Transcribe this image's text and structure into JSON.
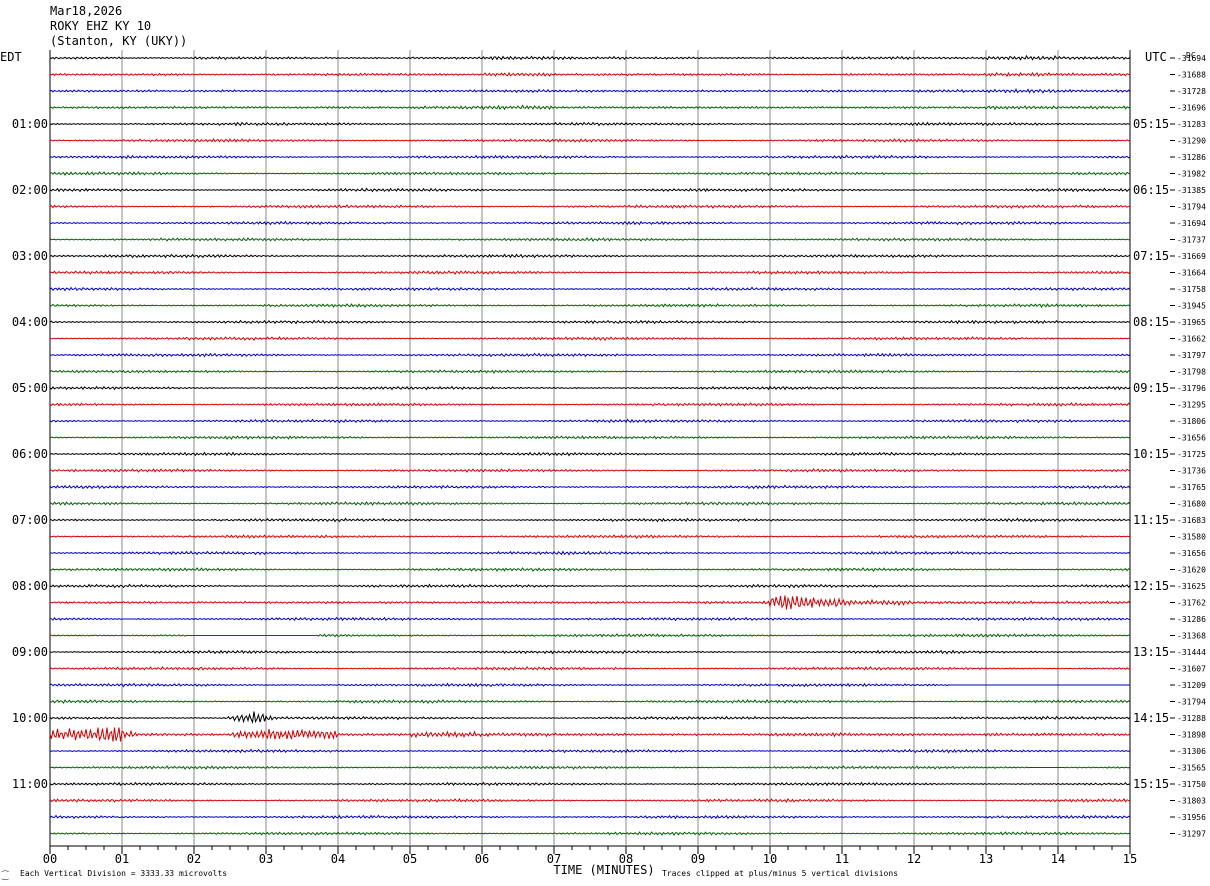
{
  "header": {
    "date": "Mar18,2026",
    "station": "ROKY EHZ KY 10",
    "location": "(Stanton, KY (UKY))"
  },
  "footer": {
    "scale_note": "Each Vertical Division = 3333.33 microvolts",
    "clip_note": "Traces clipped at plus/minus 5 vertical divisions",
    "corner_mark": "⁐"
  },
  "colors": {
    "trace_cycle": [
      "#000000",
      "#d00000",
      "#0000c0",
      "#006000"
    ],
    "grid": "#888888"
  },
  "chart_data": {
    "type": "line",
    "title": "",
    "xlabel": "TIME (MINUTES)",
    "ylabel": "",
    "x_ticks": [
      "00",
      "01",
      "02",
      "03",
      "04",
      "05",
      "06",
      "07",
      "08",
      "09",
      "10",
      "11",
      "12",
      "13",
      "14",
      "15"
    ],
    "xlim": [
      0,
      15
    ],
    "left_axis_label": "EDT",
    "right_axis_label": "UTC",
    "right_top_label": "DC",
    "left_hour_labels": [
      {
        "row": 4,
        "text": "01:00"
      },
      {
        "row": 8,
        "text": "02:00"
      },
      {
        "row": 12,
        "text": "03:00"
      },
      {
        "row": 16,
        "text": "04:00"
      },
      {
        "row": 20,
        "text": "05:00"
      },
      {
        "row": 24,
        "text": "06:00"
      },
      {
        "row": 28,
        "text": "07:00"
      },
      {
        "row": 32,
        "text": "08:00"
      },
      {
        "row": 36,
        "text": "09:00"
      },
      {
        "row": 40,
        "text": "10:00"
      },
      {
        "row": 44,
        "text": "11:00"
      }
    ],
    "right_hour_labels": [
      {
        "row": 4,
        "text": "05:15"
      },
      {
        "row": 8,
        "text": "06:15"
      },
      {
        "row": 12,
        "text": "07:15"
      },
      {
        "row": 16,
        "text": "08:15"
      },
      {
        "row": 20,
        "text": "09:15"
      },
      {
        "row": 24,
        "text": "10:15"
      },
      {
        "row": 28,
        "text": "11:15"
      },
      {
        "row": 32,
        "text": "12:15"
      },
      {
        "row": 36,
        "text": "13:15"
      },
      {
        "row": 40,
        "text": "14:15"
      },
      {
        "row": 44,
        "text": "15:15"
      }
    ],
    "dc_offsets": [
      "-31694",
      "-31688",
      "-31728",
      "-31696",
      "-31283",
      "-31290",
      "-31286",
      "-31982",
      "-31385",
      "-31794",
      "-31694",
      "-31737",
      "-31669",
      "-31664",
      "-31758",
      "-31945",
      "-31965",
      "-31662",
      "-31797",
      "-31798",
      "-31796",
      "-31295",
      "-31806",
      "-31656",
      "-31725",
      "-31736",
      "-31765",
      "-31680",
      "-31683",
      "-31580",
      "-31656",
      "-31620",
      "-31625",
      "-31762",
      "-31286",
      "-31368",
      "-31444",
      "-31607",
      "-31209",
      "-31794",
      "-31288",
      "-31898",
      "-31306",
      "-31565",
      "-31750",
      "-31803",
      "-31956",
      "-31297"
    ],
    "series": [
      {
        "row": 0,
        "values": [
          0.3,
          0.2,
          0.4,
          0.3,
          0.2,
          0.3,
          0.5,
          0.4,
          0.3,
          0.2,
          0.3,
          0.4,
          0.3,
          0.6,
          0.4,
          0.3
        ]
      },
      {
        "row": 1,
        "values": [
          0.3,
          0.3,
          0.2,
          0.3,
          0.4,
          0.3,
          0.5,
          0.3,
          0.3,
          0.3,
          0.2,
          0.3,
          0.3,
          0.5,
          0.4,
          0.3
        ]
      },
      {
        "row": 2,
        "values": [
          0.3,
          0.3,
          0.3,
          0.2,
          0.3,
          0.3,
          0.4,
          0.3,
          0.3,
          0.3,
          0.3,
          0.3,
          0.4,
          0.5,
          0.4,
          0.3
        ]
      },
      {
        "row": 3,
        "values": [
          0.3,
          0.3,
          0.3,
          0.3,
          0.3,
          0.4,
          0.6,
          0.3,
          0.3,
          0.3,
          0.3,
          0.3,
          0.3,
          0.5,
          0.4,
          0.3
        ]
      },
      {
        "row": 41,
        "values": [
          1.8,
          0.4,
          0.3,
          1.5,
          0.4,
          0.8,
          0.5,
          0.4,
          0.3,
          0.3,
          0.5,
          0.4,
          0.3,
          0.4,
          0.4,
          0.3
        ]
      },
      {
        "row": 33,
        "values": [
          0.3,
          0.3,
          0.3,
          0.3,
          0.3,
          0.3,
          0.3,
          0.3,
          0.3,
          0.4,
          1.6,
          0.8,
          0.4,
          0.4,
          0.4,
          0.3
        ]
      }
    ],
    "gaps": [
      {
        "row": 34,
        "start": 1.0,
        "end": 1.2
      },
      {
        "row": 35,
        "start": 1.9,
        "end": 3.7
      },
      {
        "row": 38,
        "start": 10.0,
        "end": 10.1
      },
      {
        "row": 38,
        "start": 12.5,
        "end": 15.0
      },
      {
        "row": 43,
        "start": 13.6,
        "end": 14.1
      }
    ],
    "events": [
      {
        "row": 40,
        "minute": 2.8,
        "amplitude": 2.2
      },
      {
        "row": 41,
        "minute": 0.9,
        "amplitude": 2.0
      },
      {
        "row": 41,
        "minute": 2.8,
        "amplitude": 1.5
      },
      {
        "row": 33,
        "minute": 10.3,
        "amplitude": 1.8
      }
    ],
    "grid": true
  }
}
